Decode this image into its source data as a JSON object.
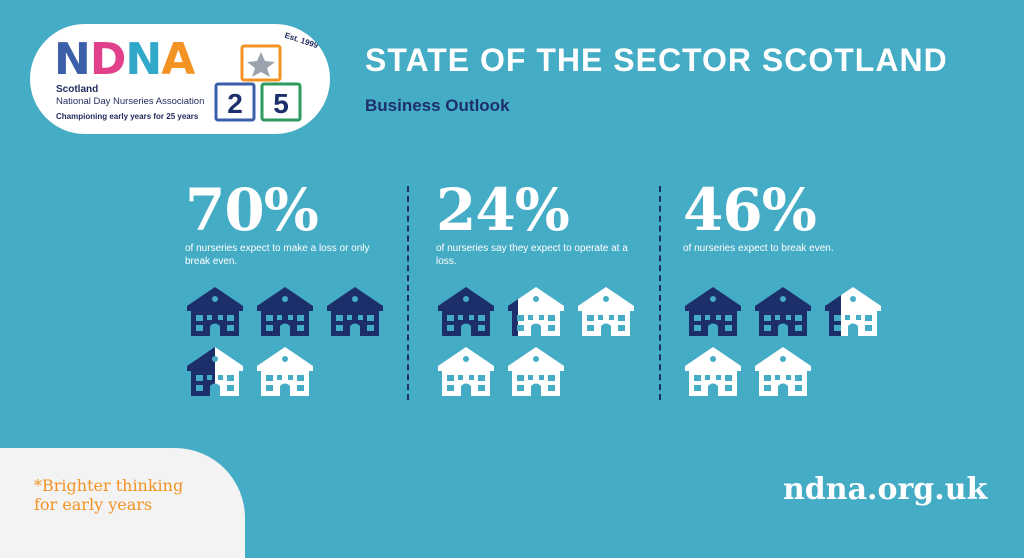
{
  "logo": {
    "letters": [
      {
        "char": "N",
        "color": "#3b5fa8"
      },
      {
        "char": "D",
        "color": "#e0418a"
      },
      {
        "char": "N",
        "color": "#2fa8c9"
      },
      {
        "char": "A",
        "color": "#f39324"
      }
    ],
    "region": "Scotland",
    "org_name": "National Day Nurseries Association",
    "tagline": "Championing early years for 25 years",
    "est": "Est. 1999",
    "block_digit_1": "2",
    "block_digit_2": "5"
  },
  "header": {
    "title": "STATE OF THE SECTOR SCOTLAND",
    "subtitle": "Business Outlook"
  },
  "stats": [
    {
      "value": "70%",
      "description": "of nurseries expect to make a loss or only break even.",
      "houses_filled": 3.5,
      "houses_total": 5
    },
    {
      "value": "24%",
      "description": "of nurseries say they expect to operate at a loss.",
      "houses_filled": 1.2,
      "houses_total": 5
    },
    {
      "value": "46%",
      "description": "of nurseries expect to break even.",
      "houses_filled": 2.3,
      "houses_total": 5
    }
  ],
  "footer": {
    "slogan_line1": "*Brighter thinking",
    "slogan_line2": "for early years",
    "url": "ndna.org.uk"
  },
  "colors": {
    "background": "#45acc6",
    "navy": "#1c2f6b",
    "white": "#ffffff",
    "orange": "#f39324"
  }
}
